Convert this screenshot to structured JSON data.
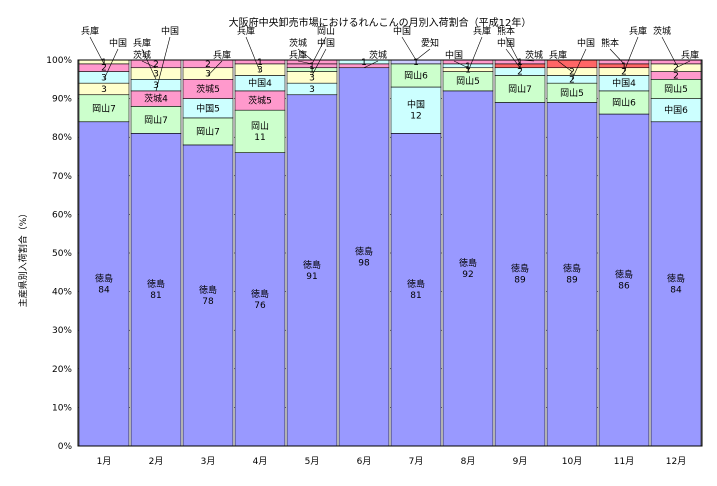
{
  "chart_data": {
    "type": "bar",
    "stacked": true,
    "percent_stacked": true,
    "title": "大阪府中央卸売市場におけるれんこんの月別入荷割合（平成12年）",
    "ylabel": "主産県別入荷割合（%）",
    "xlabel": "",
    "ylim": [
      0,
      100
    ],
    "yticks": [
      "0%",
      "10%",
      "20%",
      "30%",
      "40%",
      "50%",
      "60%",
      "70%",
      "80%",
      "90%",
      "100%"
    ],
    "grid": true,
    "legend": "none",
    "categories": [
      "1月",
      "2月",
      "3月",
      "4月",
      "5月",
      "6月",
      "7月",
      "8月",
      "9月",
      "10月",
      "11月",
      "12月"
    ],
    "colors": {
      "徳島": "#9999ff",
      "岡山": "#ccffcc",
      "中国": "#ccffff",
      "茨城": "#ff99cc",
      "兵庫": "#ffffcc",
      "愛知": "#ccccff",
      "熊本": "#ff6666"
    },
    "columns": [
      {
        "segments": [
          {
            "name": "徳島",
            "value": 84,
            "label": "徳島\n84"
          },
          {
            "name": "岡山",
            "value": 7,
            "label": "岡山7"
          },
          {
            "name": "兵庫",
            "value": 3,
            "label": "3"
          },
          {
            "name": "中国",
            "value": 3,
            "label": "3"
          },
          {
            "name": "茨城",
            "value": 2,
            "label": "2"
          },
          {
            "name": "兵庫",
            "value": 1,
            "label": "1"
          }
        ]
      },
      {
        "segments": [
          {
            "name": "徳島",
            "value": 81,
            "label": "徳島\n81"
          },
          {
            "name": "岡山",
            "value": 7,
            "label": "岡山7"
          },
          {
            "name": "茨城",
            "value": 4,
            "label": "茨城4"
          },
          {
            "name": "中国",
            "value": 3,
            "label": "3"
          },
          {
            "name": "兵庫",
            "value": 3,
            "label": "3"
          },
          {
            "name": "茨城",
            "value": 2,
            "label": "2"
          }
        ]
      },
      {
        "segments": [
          {
            "name": "徳島",
            "value": 78,
            "label": "徳島\n78"
          },
          {
            "name": "岡山",
            "value": 7,
            "label": "岡山7"
          },
          {
            "name": "中国",
            "value": 5,
            "label": "中国5"
          },
          {
            "name": "茨城",
            "value": 5,
            "label": "茨城5"
          },
          {
            "name": "兵庫",
            "value": 3,
            "label": "3"
          },
          {
            "name": "茨城",
            "value": 2,
            "label": "2"
          }
        ]
      },
      {
        "segments": [
          {
            "name": "徳島",
            "value": 76,
            "label": "徳島\n76"
          },
          {
            "name": "岡山",
            "value": 11,
            "label": "岡山\n11"
          },
          {
            "name": "茨城",
            "value": 5,
            "label": "茨城5"
          },
          {
            "name": "中国",
            "value": 4,
            "label": "中国4"
          },
          {
            "name": "兵庫",
            "value": 3,
            "label": "3"
          },
          {
            "name": "茨城",
            "value": 1,
            "label": "1"
          }
        ]
      },
      {
        "segments": [
          {
            "name": "徳島",
            "value": 91,
            "label": "徳島\n91"
          },
          {
            "name": "中国",
            "value": 3,
            "label": "3"
          },
          {
            "name": "兵庫",
            "value": 3,
            "label": "3"
          },
          {
            "name": "岡山",
            "value": 1,
            "label": "1"
          },
          {
            "name": "茨城",
            "value": 1,
            "label": "1"
          },
          {
            "name": "茨城",
            "value": 1,
            "label": ""
          }
        ]
      },
      {
        "segments": [
          {
            "name": "徳島",
            "value": 98,
            "label": "徳島\n98"
          },
          {
            "name": "茨城",
            "value": 1,
            "label": ""
          },
          {
            "name": "中国",
            "value": 1,
            "label": "1"
          }
        ]
      },
      {
        "segments": [
          {
            "name": "徳島",
            "value": 81,
            "label": "徳島\n81"
          },
          {
            "name": "中国",
            "value": 12,
            "label": "中国\n12"
          },
          {
            "name": "岡山",
            "value": 6,
            "label": "岡山6"
          },
          {
            "name": "愛知",
            "value": 1,
            "label": "1"
          }
        ]
      },
      {
        "segments": [
          {
            "name": "徳島",
            "value": 92,
            "label": "徳島\n92"
          },
          {
            "name": "岡山",
            "value": 5,
            "label": "岡山5"
          },
          {
            "name": "兵庫",
            "value": 1,
            "label": "1"
          },
          {
            "name": "中国",
            "value": 1,
            "label": "1"
          },
          {
            "name": "茨城",
            "value": 1,
            "label": ""
          }
        ]
      },
      {
        "segments": [
          {
            "name": "徳島",
            "value": 89,
            "label": "徳島\n89"
          },
          {
            "name": "岡山",
            "value": 7,
            "label": "岡山7"
          },
          {
            "name": "中国",
            "value": 2,
            "label": "2"
          },
          {
            "name": "熊本",
            "value": 1,
            "label": "1"
          },
          {
            "name": "茨城",
            "value": 1,
            "label": "1"
          }
        ]
      },
      {
        "segments": [
          {
            "name": "徳島",
            "value": 89,
            "label": "徳島\n89"
          },
          {
            "name": "岡山",
            "value": 5,
            "label": "岡山5"
          },
          {
            "name": "中国",
            "value": 2,
            "label": "2"
          },
          {
            "name": "兵庫",
            "value": 2,
            "label": "2"
          },
          {
            "name": "熊本",
            "value": 2,
            "label": ""
          }
        ]
      },
      {
        "segments": [
          {
            "name": "徳島",
            "value": 86,
            "label": "徳島\n86"
          },
          {
            "name": "岡山",
            "value": 6,
            "label": "岡山6"
          },
          {
            "name": "中国",
            "value": 4,
            "label": "中国4"
          },
          {
            "name": "兵庫",
            "value": 2,
            "label": "2"
          },
          {
            "name": "熊本",
            "value": 1,
            "label": "1"
          },
          {
            "name": "茨城",
            "value": 1,
            "label": ""
          }
        ]
      },
      {
        "segments": [
          {
            "name": "徳島",
            "value": 84,
            "label": "徳島\n84"
          },
          {
            "name": "中国",
            "value": 6,
            "label": "中国6"
          },
          {
            "name": "岡山",
            "value": 5,
            "label": "岡山5"
          },
          {
            "name": "茨城",
            "value": 2,
            "label": "2"
          },
          {
            "name": "兵庫",
            "value": 2,
            "label": "2"
          },
          {
            "name": "茨城",
            "value": 1,
            "label": ""
          }
        ]
      }
    ],
    "callouts": [
      {
        "text": "兵庫",
        "column": 0,
        "at": 99
      },
      {
        "text": "中国",
        "column": 0,
        "at": 95
      },
      {
        "text": "茨城",
        "column": 1,
        "at": 98
      },
      {
        "text": "中国",
        "column": 1,
        "at": 92
      },
      {
        "text": "兵庫",
        "column": 1,
        "at": 95
      },
      {
        "text": "兵庫",
        "column": 2,
        "at": 96
      },
      {
        "text": "兵庫",
        "column": 3,
        "at": 97
      },
      {
        "text": "中国",
        "column": 4,
        "at": 96
      },
      {
        "text": "兵庫",
        "column": 4,
        "at": 99
      },
      {
        "text": "岡山",
        "column": 4,
        "at": 99
      },
      {
        "text": "茨城",
        "column": 4,
        "at": 100
      },
      {
        "text": "茨城",
        "column": 5,
        "at": 98
      },
      {
        "text": "中国",
        "column": 6,
        "at": 100
      },
      {
        "text": "愛知",
        "column": 6,
        "at": 100
      },
      {
        "text": "中国",
        "column": 7,
        "at": 98
      },
      {
        "text": "兵庫",
        "column": 7,
        "at": 97
      },
      {
        "text": "中国",
        "column": 8,
        "at": 98
      },
      {
        "text": "茨城",
        "column": 8,
        "at": 100
      },
      {
        "text": "熊本",
        "column": 8,
        "at": 99
      },
      {
        "text": "中国",
        "column": 9,
        "at": 95
      },
      {
        "text": "兵庫",
        "column": 9,
        "at": 97
      },
      {
        "text": "兵庫",
        "column": 10,
        "at": 97
      },
      {
        "text": "熊本",
        "column": 10,
        "at": 99
      },
      {
        "text": "兵庫",
        "column": 11,
        "at": 98
      },
      {
        "text": "茨城",
        "column": 11,
        "at": 99
      }
    ]
  }
}
